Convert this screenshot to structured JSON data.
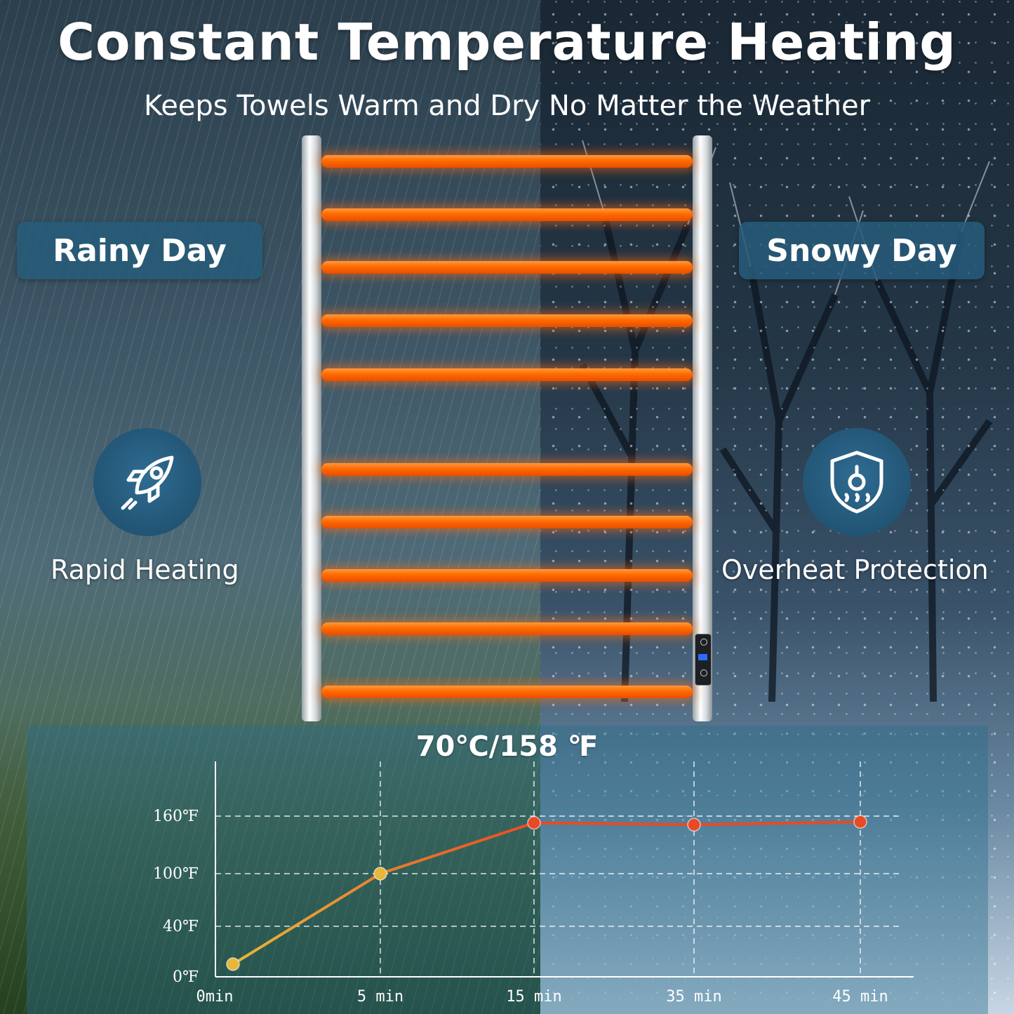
{
  "header": {
    "title": "Constant Temperature Heating",
    "subtitle": "Keeps Towels Warm and Dry No Matter the Weather"
  },
  "tags": {
    "left": "Rainy Day",
    "right": "Snowy Day"
  },
  "features": {
    "left": {
      "label": "Rapid Heating",
      "icon": "rocket-icon"
    },
    "right": {
      "label": "Overheat Protection",
      "icon": "shield-thermometer-icon"
    }
  },
  "chart_data": {
    "type": "line",
    "title": "70℃/158 ℉",
    "categories": [
      "0min",
      "5 min",
      "15 min",
      "35 min",
      "45 min"
    ],
    "values": [
      10,
      100,
      153,
      151,
      154
    ],
    "y_ticks": [
      "0℉",
      "40℉",
      "100℉",
      "160℉"
    ],
    "y_tick_values": [
      0,
      40,
      100,
      160
    ],
    "xlabel": "",
    "ylabel": "",
    "grid": true,
    "colors": {
      "start": "#e8b73a",
      "end": "#e84a25"
    }
  }
}
